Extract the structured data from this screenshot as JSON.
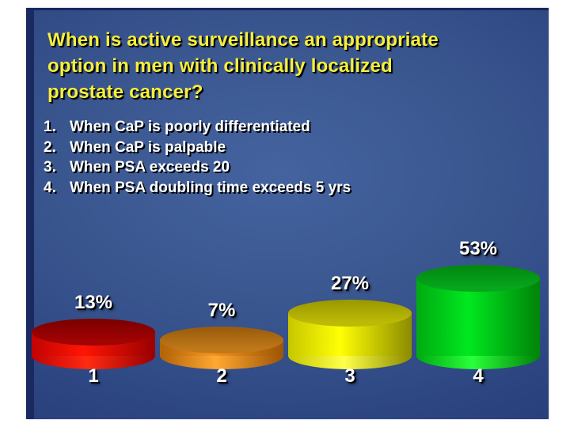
{
  "slide": {
    "background_color": "#2b4480",
    "title_color": "#f6ef3d",
    "title": "When is active surveillance an appropriate\noption in men with clinically localized\nprostate cancer?"
  },
  "quiz": {
    "options": [
      {
        "num": "1.",
        "text": "When CaP is poorly differentiated"
      },
      {
        "num": "2.",
        "text": "When CaP is palpable"
      },
      {
        "num": "3.",
        "text": "When PSA exceeds 20"
      },
      {
        "num": "4.",
        "text": "When PSA doubling time exceeds 5 yrs"
      }
    ]
  },
  "chart_data": {
    "type": "bar",
    "subtype": "3d-cylinder",
    "title": "",
    "xlabel": "",
    "ylabel": "",
    "categories": [
      "1",
      "2",
      "3",
      "4"
    ],
    "values": [
      13,
      7,
      27,
      53
    ],
    "value_labels": [
      "13%",
      "7%",
      "27%",
      "53%"
    ],
    "unit": "%",
    "ylim": [
      0,
      60
    ],
    "grid": false,
    "legend": false,
    "label_color": "#ffffff",
    "colors": [
      {
        "cap_dark": "#7e0000",
        "cap_light": "#a30303",
        "side_left": "#c40404",
        "side_center": "#ff1505",
        "side_right": "#9c0101",
        "rim": "#ff2a12"
      },
      {
        "cap_dark": "#9c5e0c",
        "cap_light": "#c0791a",
        "side_left": "#b3650a",
        "side_center": "#f5941f",
        "side_right": "#a05806",
        "rim": "#ffa832"
      },
      {
        "cap_dark": "#9d9b00",
        "cap_light": "#bdba06",
        "side_left": "#c9c900",
        "side_center": "#ffff05",
        "side_right": "#8f8f00",
        "rim": "#ffff4a"
      },
      {
        "cap_dark": "#028a10",
        "cap_light": "#07a61d",
        "side_left": "#00ad12",
        "side_center": "#00e81e",
        "side_right": "#00860a",
        "rim": "#2aff3a"
      }
    ]
  }
}
